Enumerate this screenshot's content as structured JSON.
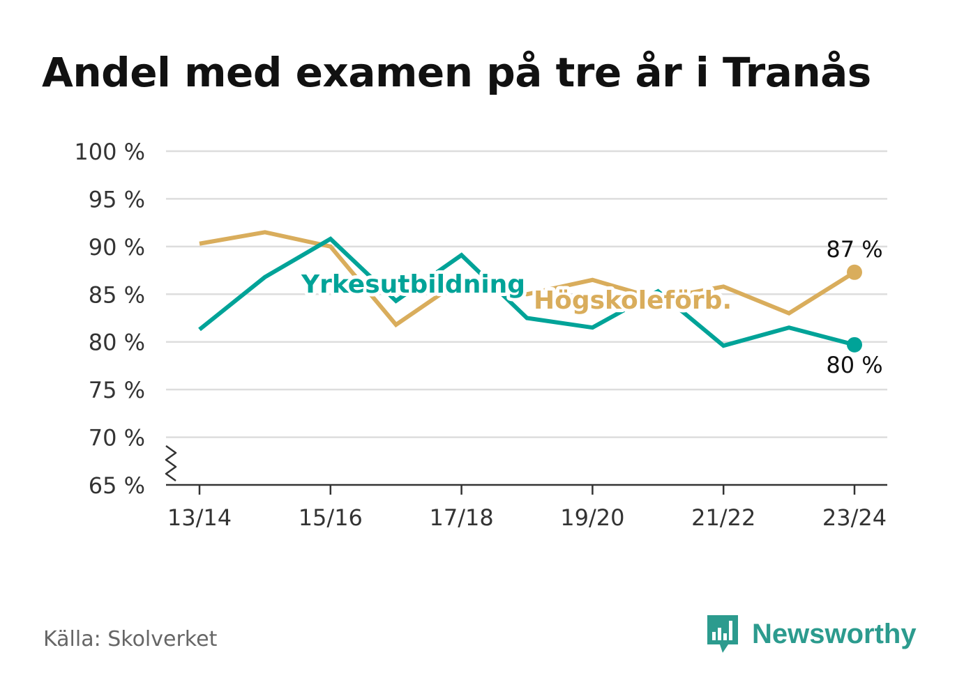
{
  "title": "Andel med examen på tre år i Tranås",
  "source": "Källa: Skolverket",
  "logo": {
    "text": "Newsworthy",
    "icon": "bar-chart-speech-bubble-icon",
    "color": "#2c9b8e"
  },
  "chart_data": {
    "type": "line",
    "title": "Andel med examen på tre år i Tranås",
    "x": [
      "13/14",
      "14/15",
      "15/16",
      "16/17",
      "17/18",
      "18/19",
      "19/20",
      "20/21",
      "21/22",
      "22/23",
      "23/24"
    ],
    "x_tick_labels": [
      "13/14",
      "15/16",
      "17/18",
      "19/20",
      "21/22",
      "23/24"
    ],
    "ylim": [
      65,
      100
    ],
    "y_ticks": [
      65,
      70,
      75,
      80,
      85,
      90,
      95,
      100
    ],
    "y_tick_suffix": " %",
    "axis_break": true,
    "grid": true,
    "series": [
      {
        "name": "Högskoleförb.",
        "color": "#d9ad5c",
        "values": [
          90.3,
          91.5,
          90.0,
          81.8,
          86.5,
          85.0,
          86.5,
          84.5,
          85.8,
          83.0,
          87.3
        ],
        "end_label": "87 %",
        "end_label_position": "above"
      },
      {
        "name": "Yrkesutbildning",
        "color": "#00a398",
        "values": [
          81.3,
          86.8,
          90.8,
          84.3,
          89.1,
          82.5,
          81.5,
          85.3,
          79.6,
          81.5,
          79.7
        ],
        "end_label": "80 %",
        "end_label_position": "below"
      }
    ]
  }
}
